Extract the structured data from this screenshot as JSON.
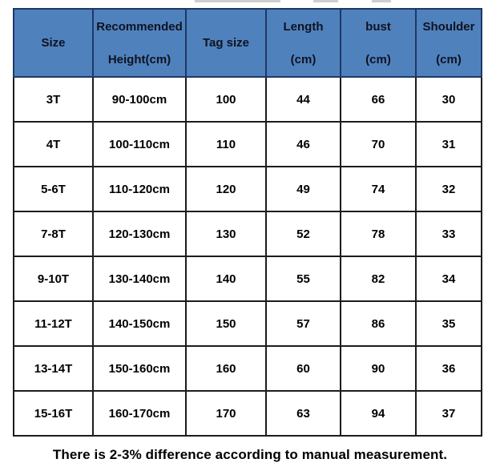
{
  "colors": {
    "header_bg": "#4F81BD",
    "header_border": "#1F3864",
    "grid_border": "#1C1C1C",
    "header_text": "#10121F",
    "body_text": "#000000"
  },
  "chart_data": {
    "type": "table",
    "columns": [
      "Size",
      "Recommended Height(cm)",
      "Tag size",
      "Length (cm)",
      "bust (cm)",
      "Shoulder (cm)"
    ],
    "rows": [
      [
        "3T",
        "90-100cm",
        "100",
        "44",
        "66",
        "30"
      ],
      [
        "4T",
        "100-110cm",
        "110",
        "46",
        "70",
        "31"
      ],
      [
        "5-6T",
        "110-120cm",
        "120",
        "49",
        "74",
        "32"
      ],
      [
        "7-8T",
        "120-130cm",
        "130",
        "52",
        "78",
        "33"
      ],
      [
        "9-10T",
        "130-140cm",
        "140",
        "55",
        "82",
        "34"
      ],
      [
        "11-12T",
        "140-150cm",
        "150",
        "57",
        "86",
        "35"
      ],
      [
        "13-14T",
        "150-160cm",
        "160",
        "60",
        "90",
        "36"
      ],
      [
        "15-16T",
        "160-170cm",
        "170",
        "63",
        "94",
        "37"
      ]
    ],
    "footnote": "There is 2-3% difference according to manual measurement.",
    "legend_position": "none",
    "grid": "on"
  },
  "table": {
    "headers": [
      {
        "line1": "Size",
        "line2": ""
      },
      {
        "line1": "Recommended",
        "line2": "Height(cm)"
      },
      {
        "line1": "Tag size",
        "line2": ""
      },
      {
        "line1": "Length",
        "line2": "(cm)"
      },
      {
        "line1": "bust",
        "line2": "(cm)"
      },
      {
        "line1": "Shoulder",
        "line2": "(cm)"
      }
    ]
  }
}
